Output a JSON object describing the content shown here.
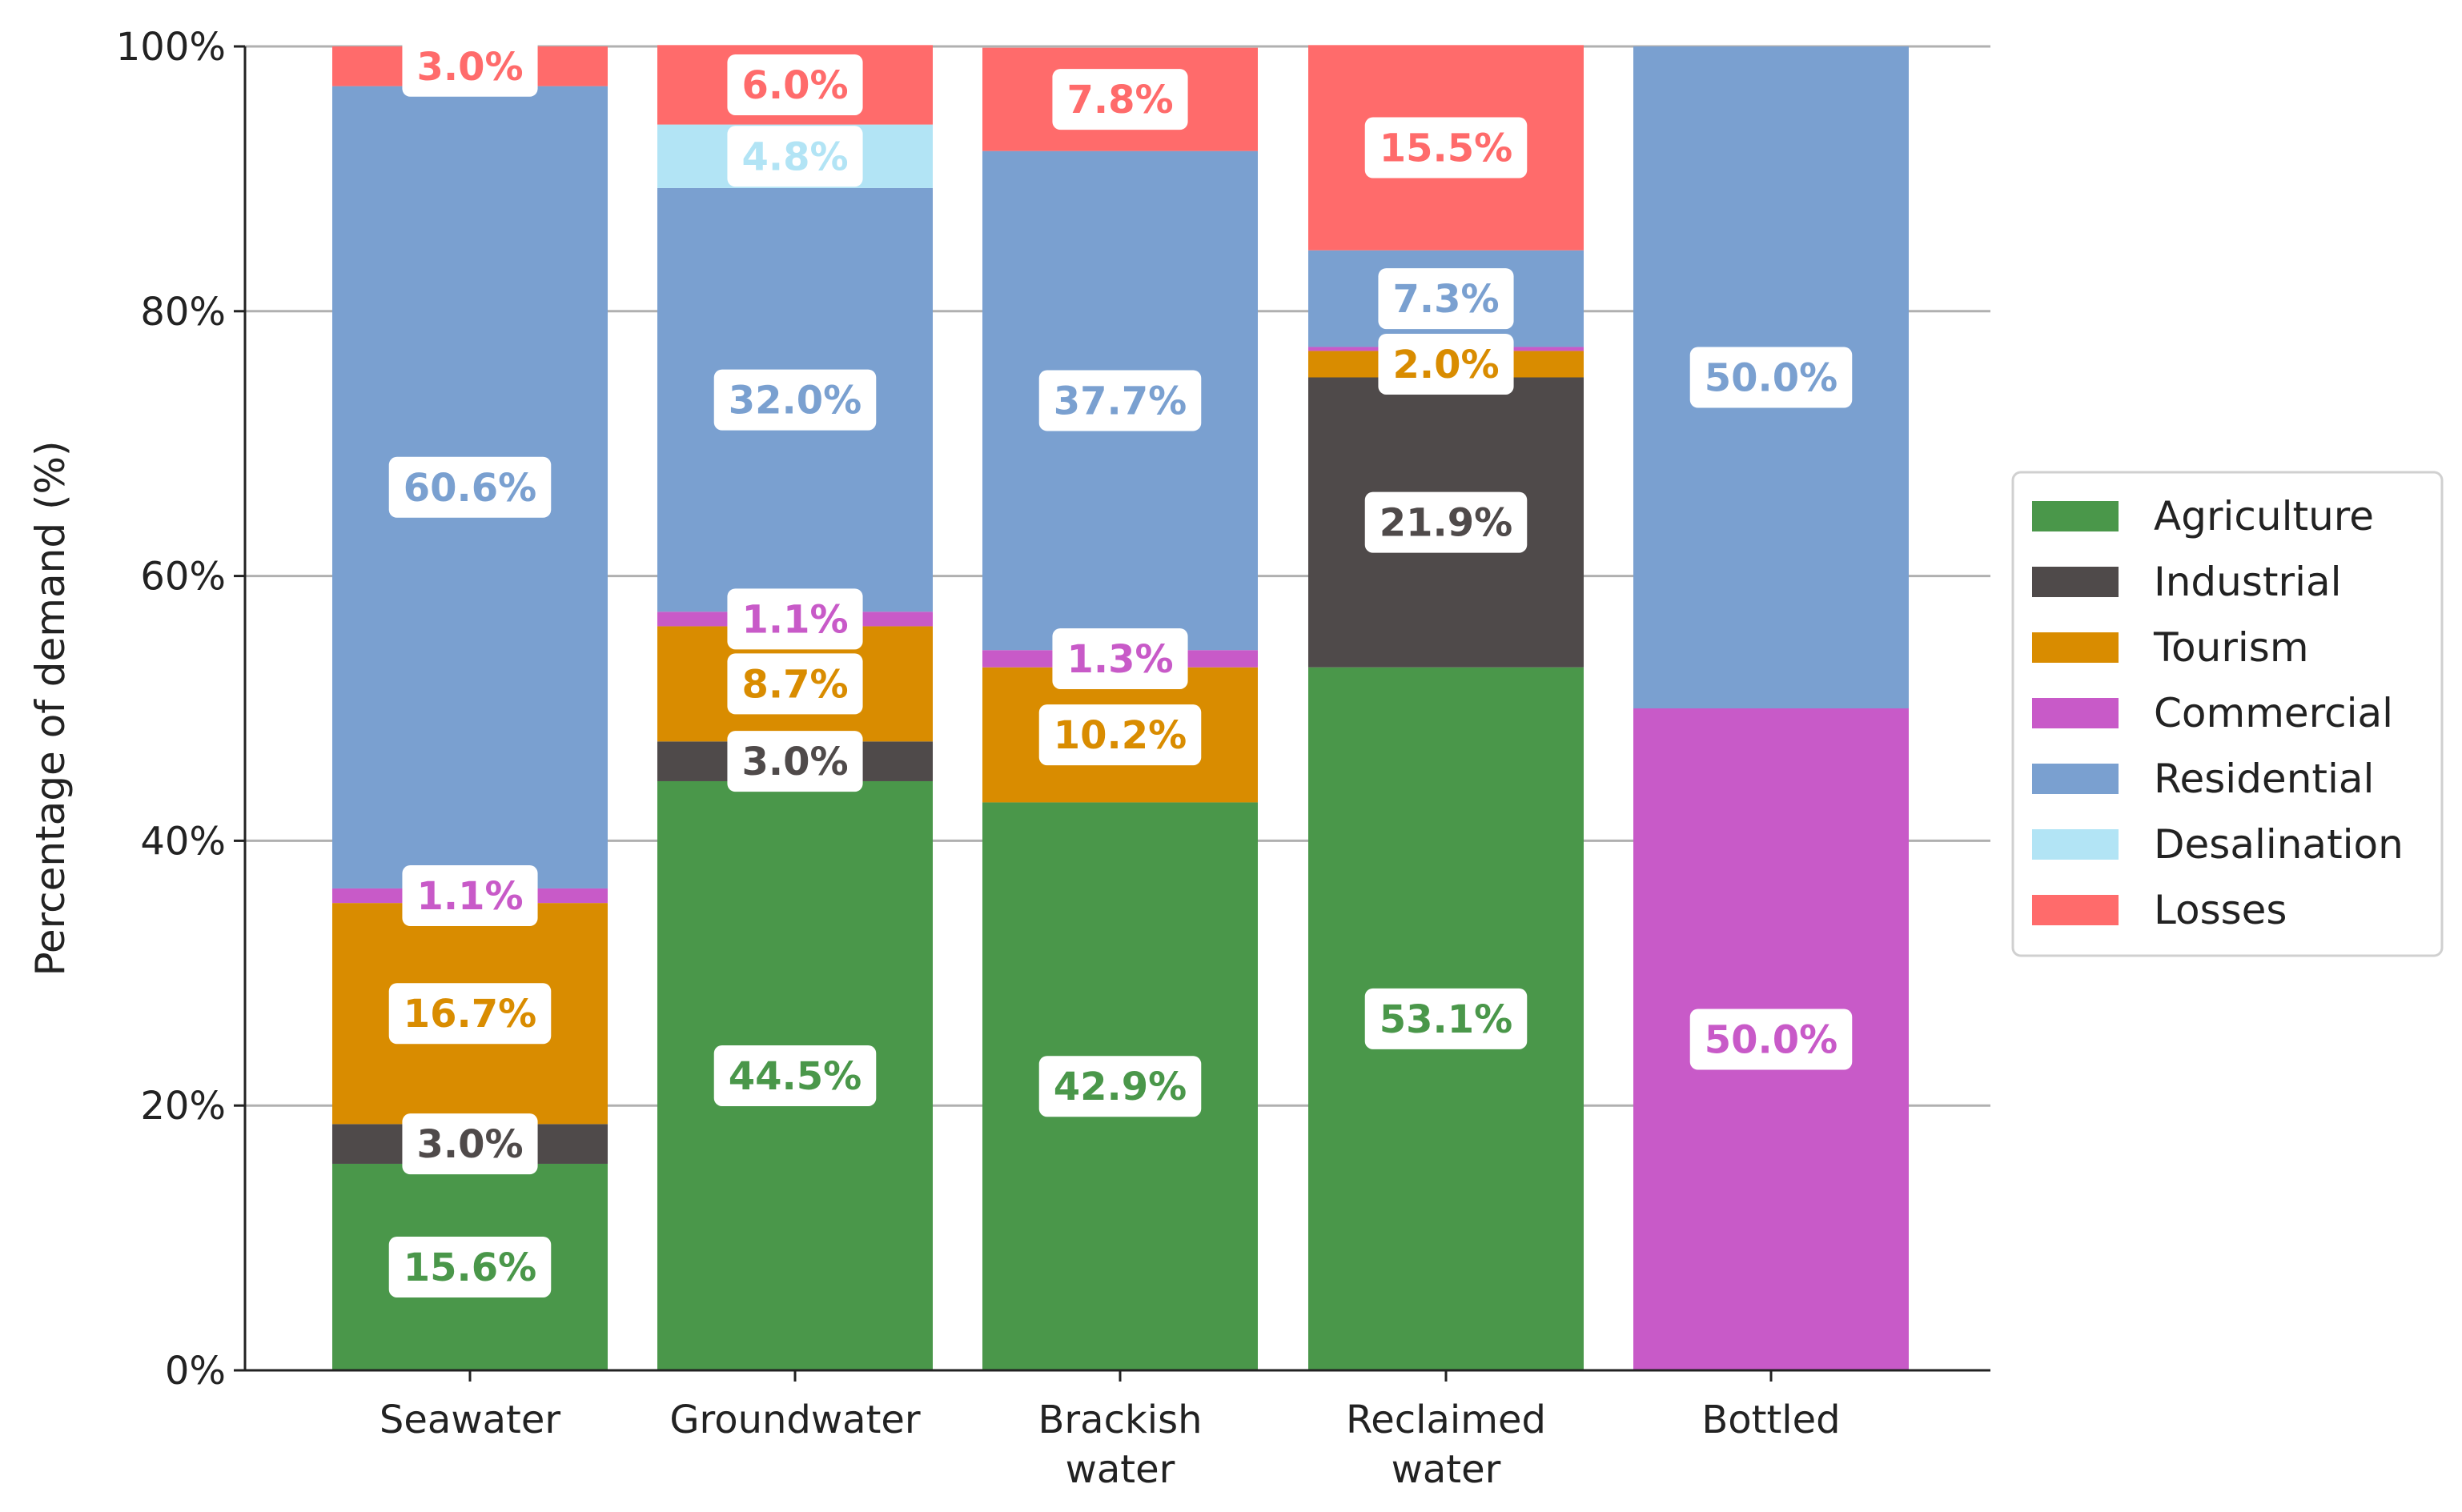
{
  "chart_data": {
    "type": "bar",
    "stacked": true,
    "title": "",
    "xlabel": "",
    "ylabel": "Percentage of demand (%)",
    "ylim": [
      0,
      100
    ],
    "yticks": [
      "0%",
      "20%",
      "40%",
      "60%",
      "80%",
      "100%"
    ],
    "grid": "horizontal",
    "legend_position": "right",
    "categories": [
      [
        "Seawater"
      ],
      [
        "Groundwater"
      ],
      [
        "Brackish",
        "water"
      ],
      [
        "Reclaimed",
        "water"
      ],
      [
        "Bottled"
      ]
    ],
    "series": [
      {
        "name": "Agriculture",
        "color": "#4a974a",
        "values": [
          15.6,
          44.5,
          42.9,
          53.1,
          0
        ]
      },
      {
        "name": "Industrial",
        "color": "#4f4a4a",
        "values": [
          3.0,
          3.0,
          0,
          21.9,
          0
        ]
      },
      {
        "name": "Tourism",
        "color": "#d98c00",
        "values": [
          16.7,
          8.7,
          10.2,
          2.0,
          0
        ]
      },
      {
        "name": "Commercial",
        "color": "#c85ac8",
        "values": [
          1.1,
          1.1,
          1.3,
          0.3,
          50.0
        ]
      },
      {
        "name": "Residential",
        "color": "#7aa0d0",
        "values": [
          60.6,
          32.0,
          37.7,
          7.3,
          50.0
        ]
      },
      {
        "name": "Desalination",
        "color": "#b2e4f5",
        "values": [
          0,
          4.8,
          0,
          0,
          0
        ]
      },
      {
        "name": "Losses",
        "color": "#ff6b6b",
        "values": [
          3.0,
          6.0,
          7.8,
          15.5,
          0
        ]
      }
    ],
    "data_labels": [
      [
        "15.6%",
        "3.0%",
        "16.7%",
        "1.1%",
        "60.6%",
        "",
        "3.0%"
      ],
      [
        "44.5%",
        "3.0%",
        "8.7%",
        "1.1%",
        "32.0%",
        "4.8%",
        "6.0%"
      ],
      [
        "42.9%",
        "",
        "10.2%",
        "1.3%",
        "37.7%",
        "",
        "7.8%"
      ],
      [
        "53.1%",
        "21.9%",
        "2.0%",
        "",
        "7.3%",
        "",
        "15.5%"
      ],
      [
        "",
        "",
        "",
        "50.0%",
        "50.0%",
        "",
        ""
      ]
    ]
  }
}
